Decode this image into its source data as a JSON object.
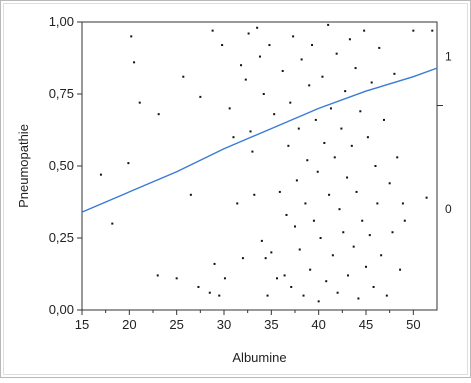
{
  "chart_data": {
    "type": "scatter",
    "title": "",
    "xlabel": "Albumine",
    "ylabel": "Pneumopathie",
    "xlim": [
      15,
      52.5
    ],
    "ylim": [
      0,
      1
    ],
    "x_ticks": [
      15,
      20,
      25,
      30,
      35,
      40,
      45,
      50
    ],
    "x_tick_labels": [
      "15",
      "20",
      "25",
      "30",
      "35",
      "40",
      "45",
      "50"
    ],
    "y_ticks": [
      0,
      0.25,
      0.5,
      0.75,
      1
    ],
    "y_tick_labels": [
      "0,00",
      "0,25",
      "0,50",
      "0,75",
      "1,00"
    ],
    "right_axis_labels": [
      {
        "text": "1",
        "y": 0.88
      },
      {
        "text": "0",
        "y": 0.35
      }
    ],
    "right_axis_ticks": [
      0.71
    ],
    "grid": false,
    "fit_curve": {
      "type": "logistic",
      "color": "#3a7bd5",
      "points": [
        [
          15,
          0.34
        ],
        [
          20,
          0.41
        ],
        [
          25,
          0.48
        ],
        [
          30,
          0.56
        ],
        [
          35,
          0.63
        ],
        [
          40,
          0.7
        ],
        [
          45,
          0.76
        ],
        [
          50,
          0.81
        ],
        [
          52.5,
          0.84
        ]
      ]
    },
    "series": [
      {
        "color": "#111111",
        "points": [
          [
            17.0,
            0.47
          ],
          [
            18.2,
            0.3
          ],
          [
            19.9,
            0.51
          ],
          [
            20.2,
            0.95
          ],
          [
            20.5,
            0.86
          ],
          [
            21.1,
            0.72
          ],
          [
            23.0,
            0.12
          ],
          [
            23.1,
            0.68
          ],
          [
            25.0,
            0.11
          ],
          [
            25.7,
            0.81
          ],
          [
            26.5,
            0.4
          ],
          [
            27.3,
            0.08
          ],
          [
            27.5,
            0.74
          ],
          [
            28.5,
            0.06
          ],
          [
            28.8,
            0.97
          ],
          [
            29.0,
            0.16
          ],
          [
            29.5,
            0.05
          ],
          [
            29.8,
            0.92
          ],
          [
            30.1,
            0.11
          ],
          [
            30.6,
            0.7
          ],
          [
            31.0,
            0.6
          ],
          [
            31.4,
            0.37
          ],
          [
            31.8,
            0.85
          ],
          [
            32.0,
            0.18
          ],
          [
            32.3,
            0.8
          ],
          [
            32.6,
            0.96
          ],
          [
            32.8,
            0.62
          ],
          [
            33.0,
            0.55
          ],
          [
            33.2,
            0.4
          ],
          [
            33.5,
            0.98
          ],
          [
            33.8,
            0.88
          ],
          [
            34.0,
            0.24
          ],
          [
            34.2,
            0.75
          ],
          [
            34.4,
            0.18
          ],
          [
            34.6,
            0.05
          ],
          [
            34.8,
            0.92
          ],
          [
            35.0,
            0.2
          ],
          [
            35.3,
            0.68
          ],
          [
            35.6,
            0.11
          ],
          [
            35.9,
            0.41
          ],
          [
            36.2,
            0.83
          ],
          [
            36.4,
            0.12
          ],
          [
            36.6,
            0.33
          ],
          [
            36.8,
            0.57
          ],
          [
            37.0,
            0.72
          ],
          [
            37.1,
            0.08
          ],
          [
            37.3,
            0.95
          ],
          [
            37.5,
            0.29
          ],
          [
            37.7,
            0.45
          ],
          [
            37.9,
            0.63
          ],
          [
            38.0,
            0.21
          ],
          [
            38.2,
            0.87
          ],
          [
            38.4,
            0.05
          ],
          [
            38.6,
            0.37
          ],
          [
            38.8,
            0.52
          ],
          [
            39.0,
            0.78
          ],
          [
            39.1,
            0.14
          ],
          [
            39.3,
            0.92
          ],
          [
            39.5,
            0.31
          ],
          [
            39.7,
            0.66
          ],
          [
            39.9,
            0.48
          ],
          [
            40.0,
            0.03
          ],
          [
            40.2,
            0.25
          ],
          [
            40.4,
            0.81
          ],
          [
            40.6,
            0.58
          ],
          [
            40.8,
            0.1
          ],
          [
            41.0,
            0.99
          ],
          [
            41.1,
            0.4
          ],
          [
            41.3,
            0.7
          ],
          [
            41.5,
            0.19
          ],
          [
            41.7,
            0.53
          ],
          [
            41.9,
            0.89
          ],
          [
            42.0,
            0.06
          ],
          [
            42.2,
            0.35
          ],
          [
            42.4,
            0.63
          ],
          [
            42.6,
            0.27
          ],
          [
            42.8,
            0.76
          ],
          [
            43.0,
            0.46
          ],
          [
            43.1,
            0.12
          ],
          [
            43.3,
            0.94
          ],
          [
            43.5,
            0.57
          ],
          [
            43.7,
            0.22
          ],
          [
            43.9,
            0.84
          ],
          [
            44.0,
            0.41
          ],
          [
            44.2,
            0.04
          ],
          [
            44.4,
            0.69
          ],
          [
            44.6,
            0.31
          ],
          [
            44.8,
            0.97
          ],
          [
            45.0,
            0.15
          ],
          [
            45.2,
            0.6
          ],
          [
            45.4,
            0.26
          ],
          [
            45.6,
            0.79
          ],
          [
            45.8,
            0.08
          ],
          [
            46.0,
            0.5
          ],
          [
            46.2,
            0.37
          ],
          [
            46.4,
            0.91
          ],
          [
            46.6,
            0.19
          ],
          [
            46.9,
            0.66
          ],
          [
            47.2,
            0.05
          ],
          [
            47.5,
            0.44
          ],
          [
            47.8,
            0.27
          ],
          [
            48.0,
            0.82
          ],
          [
            48.3,
            0.53
          ],
          [
            48.6,
            0.14
          ],
          [
            48.9,
            0.37
          ],
          [
            49.1,
            0.31
          ],
          [
            50.0,
            0.97
          ],
          [
            51.4,
            0.39
          ],
          [
            52.0,
            0.97
          ]
        ]
      }
    ]
  }
}
